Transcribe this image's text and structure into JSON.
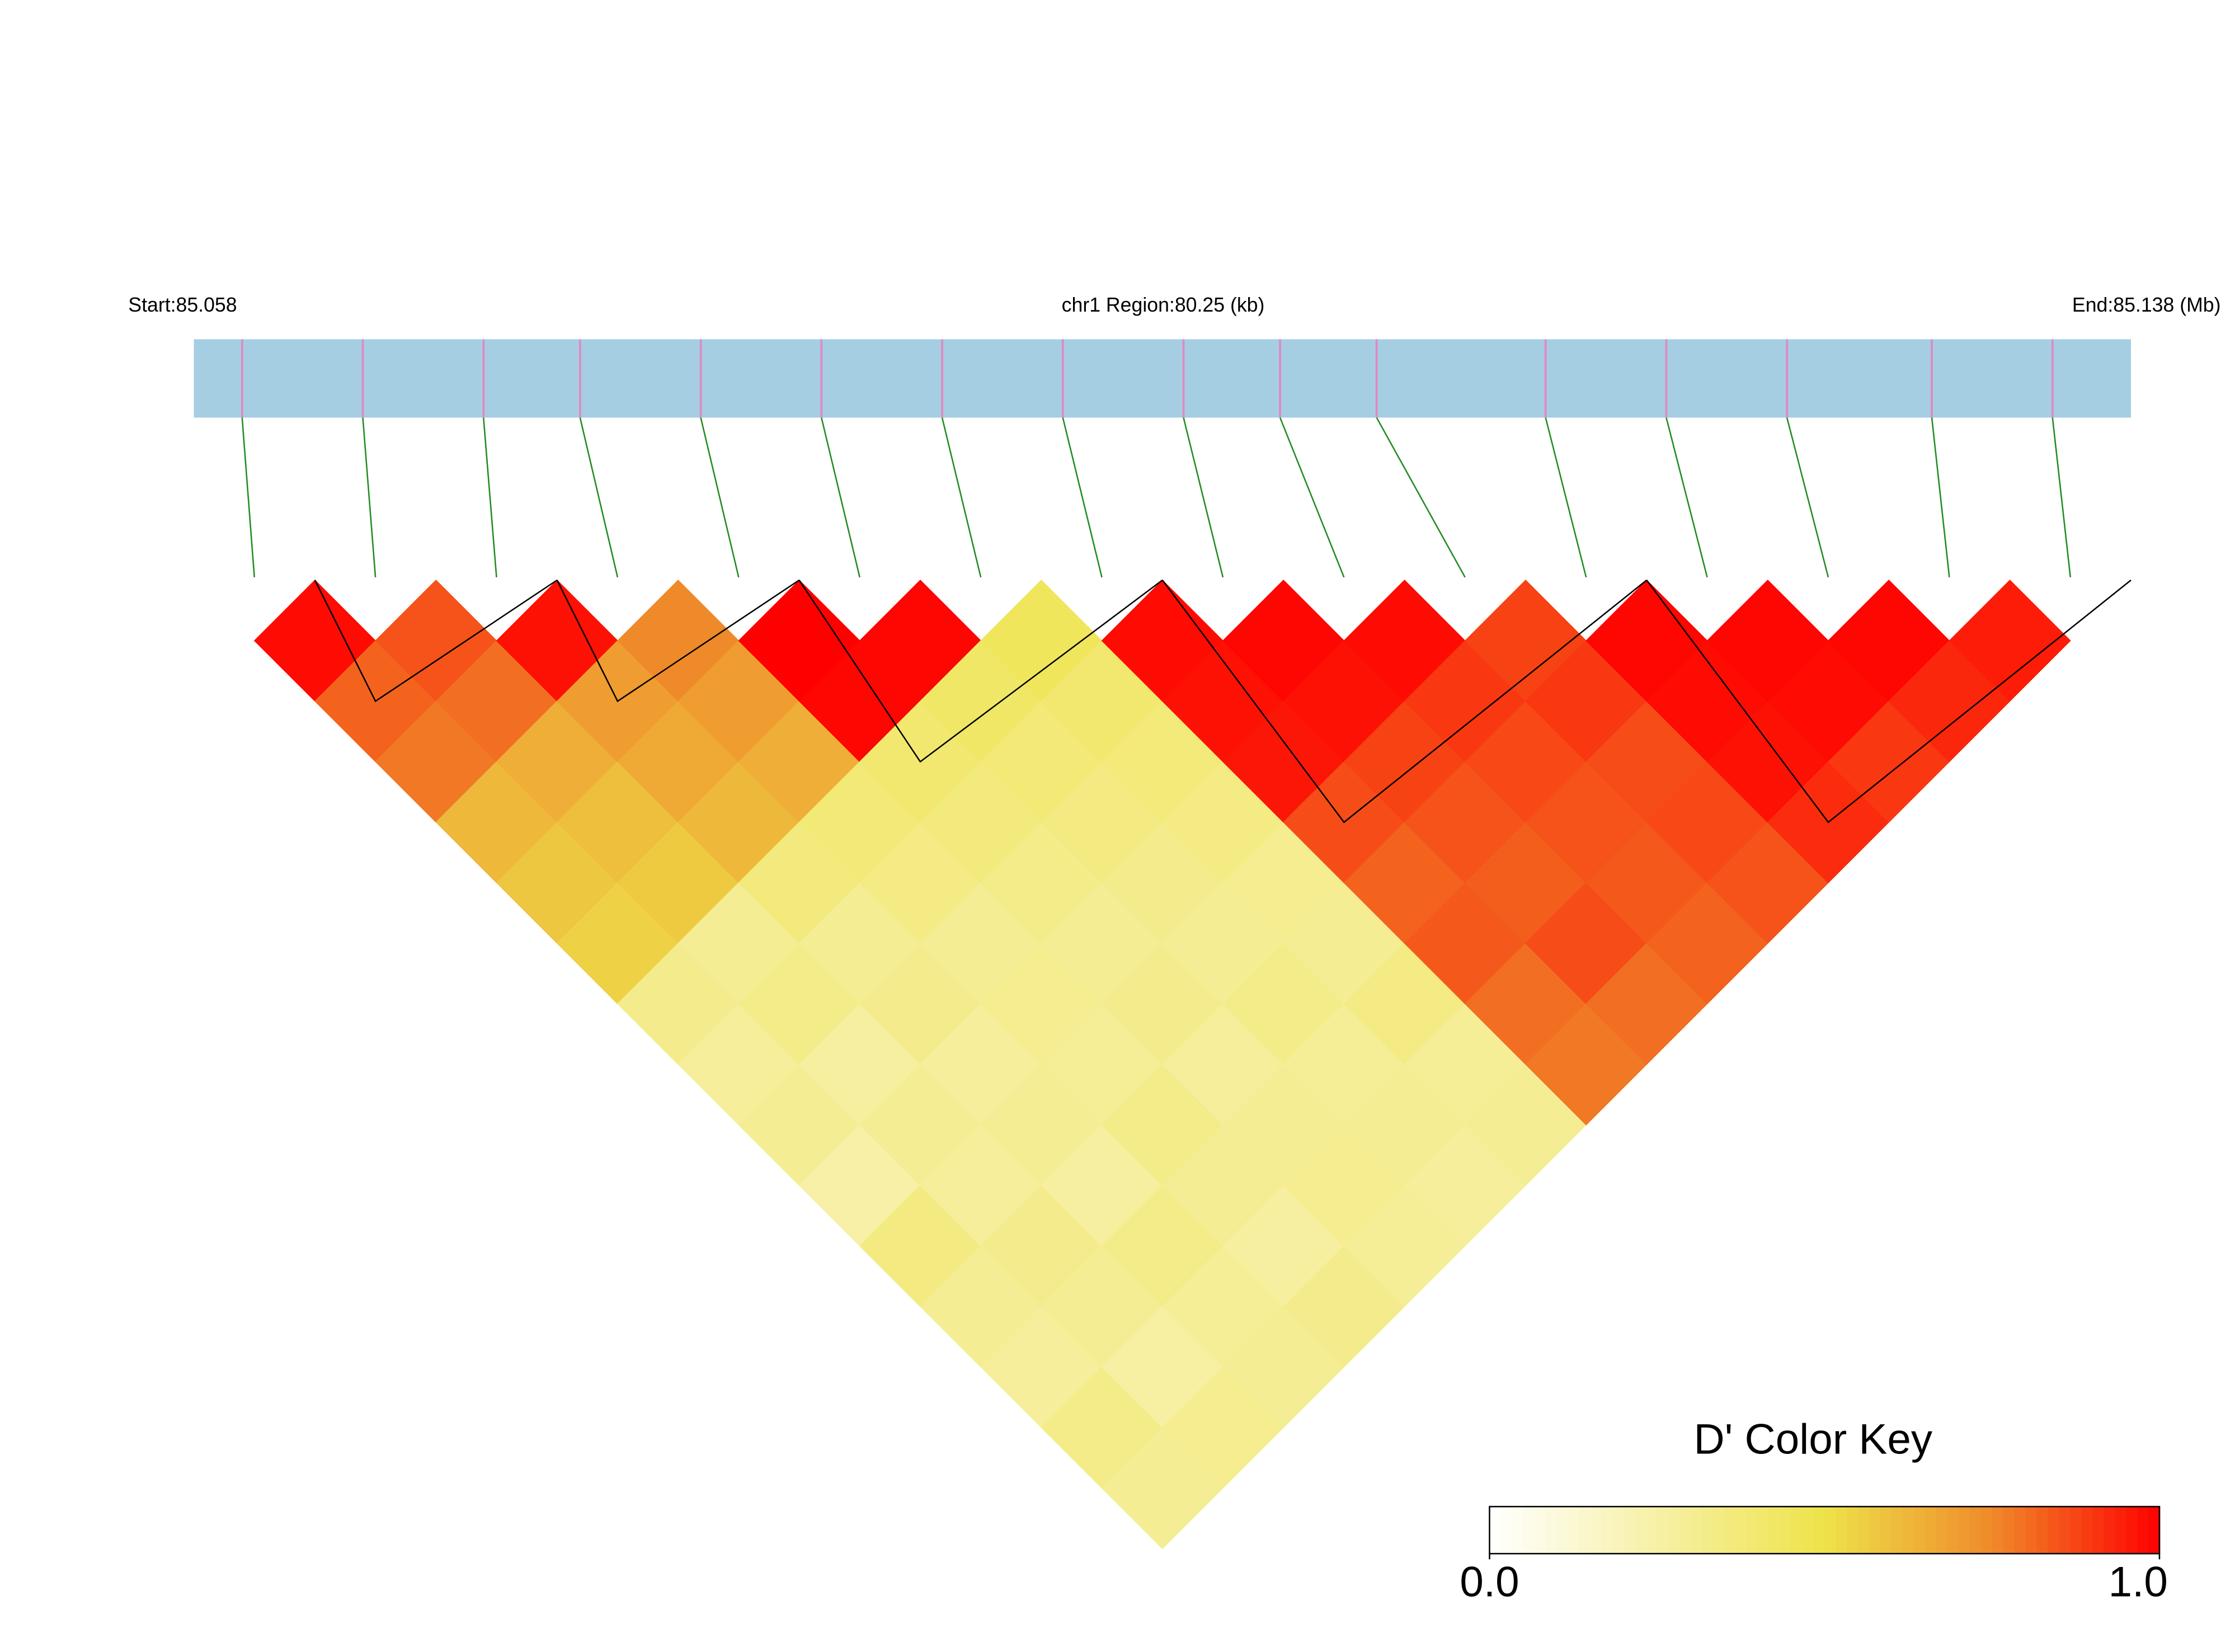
{
  "chart_data": {
    "type": "heatmap",
    "start_label": "Start:85.058",
    "region_label": "chr1 Region:80.25 (kb)",
    "end_label": "End:85.138 (Mb)",
    "key_title": "D' Color Key",
    "key_ticks": [
      {
        "value": 0,
        "label": "0.0"
      },
      {
        "value": 1,
        "label": "1.0"
      }
    ],
    "colormap": [
      "#ffffff",
      "#f7f0a6",
      "#eee34a",
      "#ef8a2a",
      "#ff0000"
    ],
    "bar_color": "#a6cee3",
    "snp_color": "#e08ac0",
    "link_color": "#228b22",
    "xlim": [
      0,
      80.25
    ],
    "snp_positions": [
      2,
      7,
      12,
      16,
      21,
      26,
      31,
      36,
      41,
      45,
      49,
      56,
      61,
      66,
      72,
      77
    ],
    "blocks": [
      [
        0,
        1
      ],
      [
        2,
        3
      ],
      [
        4,
        6
      ],
      [
        7,
        10
      ],
      [
        11,
        14
      ]
    ],
    "ld_matrix": [
      [
        0.98,
        0.82,
        0.78,
        0.62,
        0.58,
        0.55,
        0.32,
        0.28,
        0.3,
        0.25,
        0.35,
        0.3,
        0.28,
        0.33,
        0.3
      ],
      [
        0.85,
        0.8,
        0.65,
        0.6,
        0.57,
        0.3,
        0.33,
        0.27,
        0.3,
        0.28,
        0.32,
        0.3,
        0.26,
        0.31
      ],
      [
        0.97,
        0.7,
        0.66,
        0.62,
        0.36,
        0.3,
        0.32,
        0.28,
        0.3,
        0.27,
        0.33,
        0.29,
        0.3
      ],
      [
        0.75,
        0.7,
        0.65,
        0.38,
        0.34,
        0.3,
        0.31,
        0.29,
        0.33,
        0.3,
        0.27,
        0.32
      ],
      [
        1.0,
        0.99,
        0.4,
        0.36,
        0.33,
        0.3,
        0.32,
        0.28,
        0.3,
        0.31,
        0.29
      ],
      [
        0.99,
        0.42,
        0.38,
        0.35,
        0.32,
        0.3,
        0.33,
        0.29,
        0.3,
        0.28
      ],
      [
        0.45,
        0.4,
        0.37,
        0.34,
        0.31,
        0.3,
        0.34,
        0.29,
        0.3
      ],
      [
        0.98,
        0.97,
        0.96,
        0.86,
        0.82,
        0.84,
        0.8,
        0.78
      ],
      [
        0.99,
        0.97,
        0.88,
        0.85,
        0.83,
        0.86,
        0.8
      ],
      [
        0.98,
        0.9,
        0.87,
        0.85,
        0.84,
        0.82
      ],
      [
        0.88,
        0.9,
        0.86,
        0.87,
        0.85
      ],
      [
        0.99,
        0.98,
        0.97,
        0.92
      ],
      [
        0.99,
        0.98,
        0.9
      ],
      [
        0.99,
        0.93
      ],
      [
        0.95
      ]
    ]
  }
}
